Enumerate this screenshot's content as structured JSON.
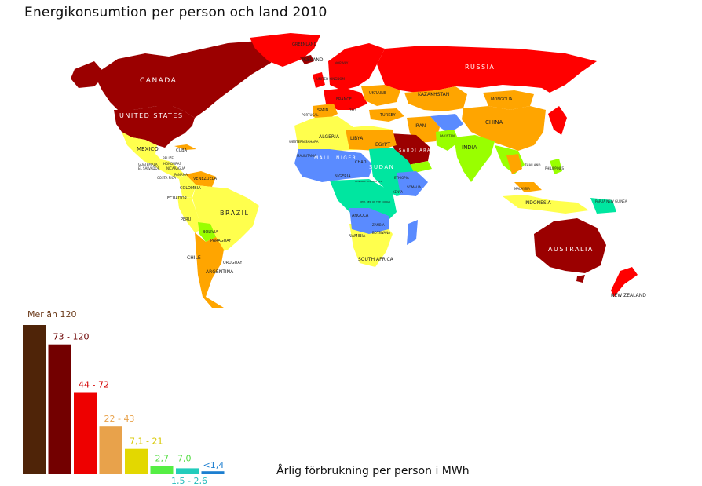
{
  "title": "Energikonsumtion per person och land 2010",
  "legend_caption": "Årlig förbrukning per person i MWh",
  "legend": [
    {
      "label": "Mer än 120",
      "color": "#4f2408",
      "text_color": "#6b3a1a",
      "level": 1.0
    },
    {
      "label": "73 - 120",
      "color": "#730000",
      "text_color": "#6b0000",
      "level": 0.87
    },
    {
      "label": "44 - 72",
      "color": "#ee0000",
      "text_color": "#d40000",
      "level": 0.55
    },
    {
      "label": "22 - 43",
      "color": "#e8a24b",
      "text_color": "#e8a24b",
      "level": 0.32
    },
    {
      "label": "7,1 - 21",
      "color": "#e3d800",
      "text_color": "#d8c800",
      "level": 0.17
    },
    {
      "label": "2,7 - 7,0",
      "color": "#55ee44",
      "text_color": "#55dd44",
      "level": 0.055
    },
    {
      "label": "1,5 - 2,6",
      "color": "#22ccbb",
      "text_color": "#22bbbb",
      "level": 0.04
    },
    {
      "label": "<1,4",
      "color": "#1d7fd0",
      "text_color": "#1d7fd0",
      "level": 0.02
    }
  ],
  "map_colors": {
    "dark_red": "#9b0000",
    "red": "#ff0000",
    "orange": "#ffa500",
    "yellow": "#ffff4d",
    "green": "#99ff00",
    "teal": "#00e6a0",
    "blue": "#5a8bff"
  },
  "labels": {
    "canada": "CANADA",
    "usa": "UNITED STATES",
    "greenland": "GREENLAND",
    "iceland": "ICELAND",
    "russia": "RUSSIA",
    "kazakhstan": "KAZAKHSTAN",
    "mongolia": "MONGOLIA",
    "china": "CHINA",
    "india": "INDIA",
    "iran": "IRAN",
    "turkey": "TURKEY",
    "ukraine": "UKRAINE",
    "spain": "SPAIN",
    "portugal": "PORTUGAL",
    "france": "FRANCE",
    "italy": "ITALY",
    "norway": "NORWAY",
    "uk": "UNITED KINGDOM",
    "mexico": "MEXICO",
    "cuba": "CUBA",
    "belize": "BELIZE",
    "honduras": "HONDURAS",
    "guatemala": "GUATEMALA",
    "el_salvador": "EL SALVADOR",
    "nicaragua": "NICARAGUA",
    "costa_rica": "COSTA RICA",
    "panama": "PANAMA",
    "venezuela": "VENEZUELA",
    "colombia": "COLOMBIA",
    "ecuador": "ECUADOR",
    "peru": "PERU",
    "brazil": "BRAZIL",
    "bolivia": "BOLIVIA",
    "paraguay": "PARAGUAY",
    "chile": "CHILE",
    "uruguay": "URUGUAY",
    "argentina": "ARGENTINA",
    "algeria": "ALGERIA",
    "libya": "LIBYA",
    "egypt": "EGYPT",
    "morocco": "MOROCCO",
    "western_sahara": "WESTERN SAHARA",
    "mauritania": "MAURITANIA",
    "mali": "MALI",
    "niger": "NIGER",
    "chad": "CHAD",
    "sudan": "SUDAN",
    "nigeria": "NIGERIA",
    "ethiopia": "ETHIOPIA",
    "somalia": "SOMALIA",
    "kenya": "KENYA",
    "car": "CENTRAL AFRICAN REP.",
    "drc": "DEM. REP. OF THE CONGO",
    "angola": "ANGOLA",
    "zambia": "ZAMBIA",
    "namibia": "NAMIBIA",
    "botswana": "BOTSWANA",
    "south_africa": "SOUTH AFRICA",
    "saudi_arabia": "SAUDI ARABIA",
    "iraq": "IRAQ",
    "pakistan": "PAKISTAN",
    "oman": "OMAN",
    "yemen": "YEMEN",
    "thailand": "THAILAND",
    "malaysia": "MALAYSIA",
    "indonesia": "INDONESIA",
    "philippines": "PHILIPPINES",
    "papua": "PAPUA NEW GUINEA",
    "australia": "AUSTRALIA",
    "new_zealand": "NEW ZEALAND"
  }
}
